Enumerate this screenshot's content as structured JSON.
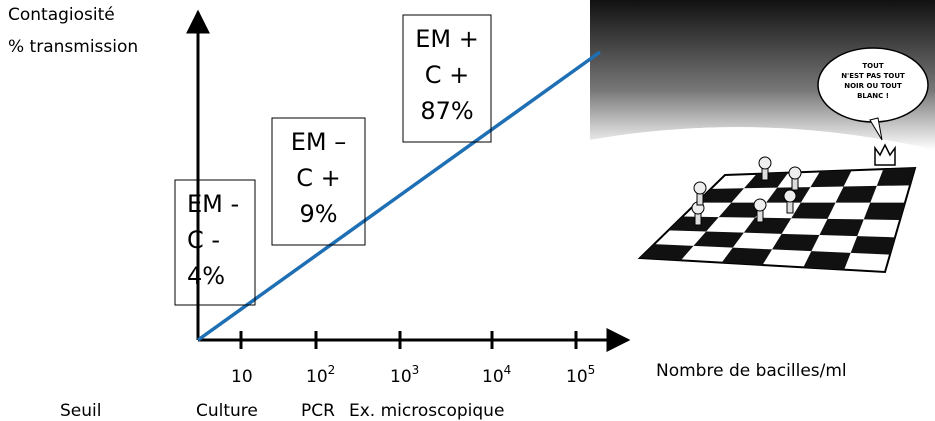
{
  "axes": {
    "y_label": [
      "Contagiosité",
      "% transmission"
    ],
    "x_label": "Nombre de bacilles/ml"
  },
  "x_ticks": [
    {
      "base": "10",
      "exp": ""
    },
    {
      "base": "10",
      "exp": "2"
    },
    {
      "base": "10",
      "exp": "3"
    },
    {
      "base": "10",
      "exp": "4"
    },
    {
      "base": "10",
      "exp": "5"
    }
  ],
  "thresholds": [
    "Seuil",
    "Culture",
    "PCR",
    "Ex. microscopique"
  ],
  "boxes": [
    [
      "EM -",
      "C -",
      "4%"
    ],
    [
      "EM –",
      "C +",
      "9%"
    ],
    [
      "EM +",
      "C +",
      "87%"
    ]
  ],
  "cartoon": {
    "speech": [
      "TOUT",
      "N'EST PAS TOUT",
      "NOIR OU TOUT",
      "BLANC !"
    ]
  }
}
